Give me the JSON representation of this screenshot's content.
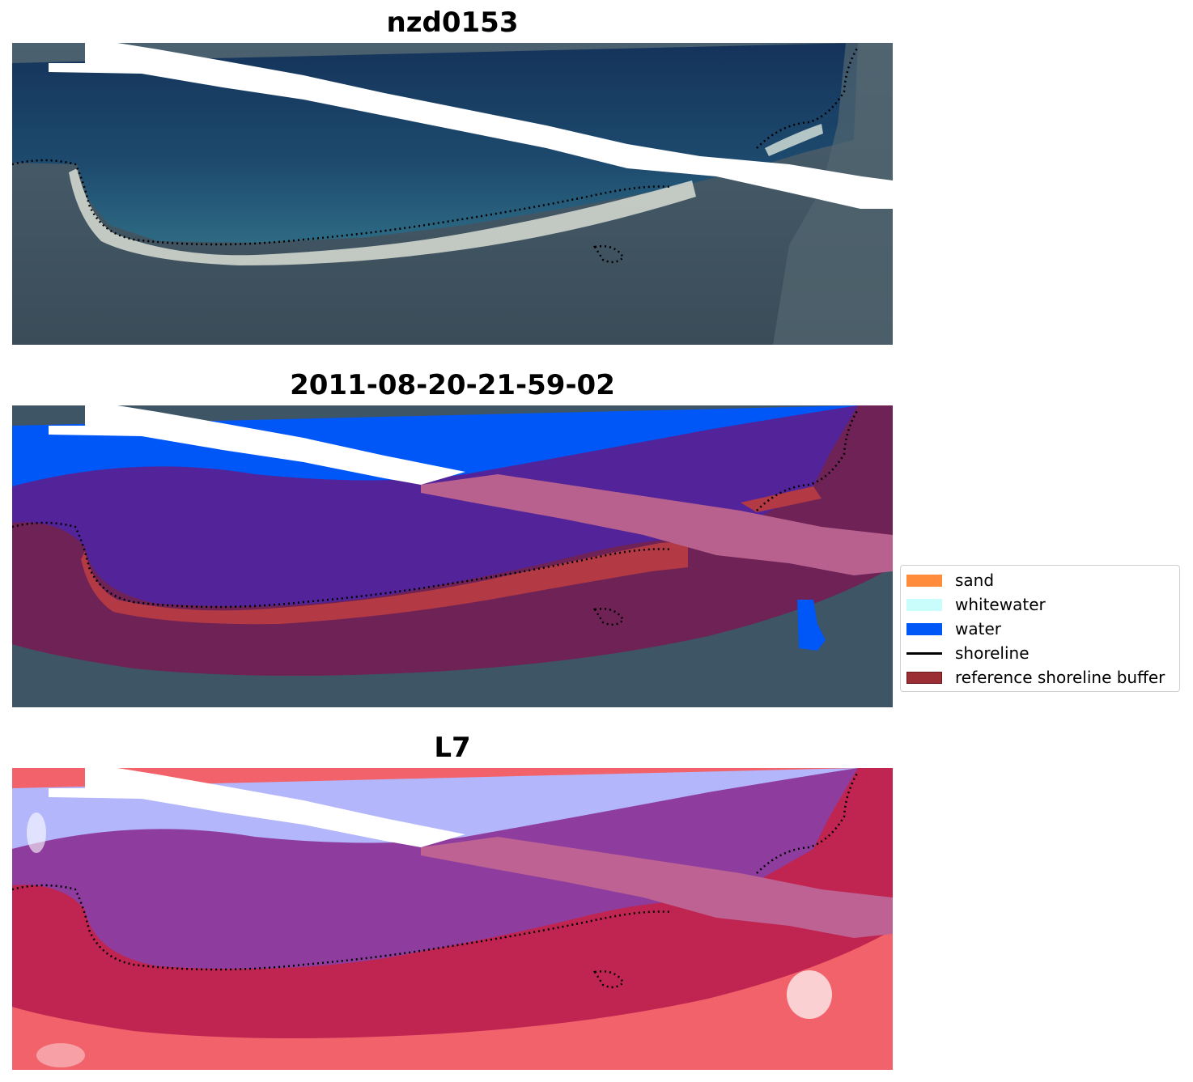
{
  "panels": [
    {
      "title": "nzd0153"
    },
    {
      "title": "2011-08-20-21-59-02"
    },
    {
      "title": "L7"
    }
  ],
  "legend": {
    "items": [
      {
        "label": "sand",
        "kind": "patch",
        "color": "#ff8c3a"
      },
      {
        "label": "whitewater",
        "kind": "patch",
        "color": "#c8fdfb"
      },
      {
        "label": "water",
        "kind": "patch",
        "color": "#0057f7"
      },
      {
        "label": "shoreline",
        "kind": "line",
        "color": "#000000"
      },
      {
        "label": "reference shoreline buffer",
        "kind": "patch",
        "color": "#9b2e34"
      }
    ]
  },
  "colors": {
    "sea_dark": "#163a64",
    "land_dark": "#3a4f5c",
    "beach_white": "#e8ece6",
    "water_class": "#0057f7",
    "buffer_overlay": "#7a1f52",
    "sand_red": "#b33a44",
    "water_index_blue": "#aab0ff",
    "land_index_red": "#f05a64"
  }
}
